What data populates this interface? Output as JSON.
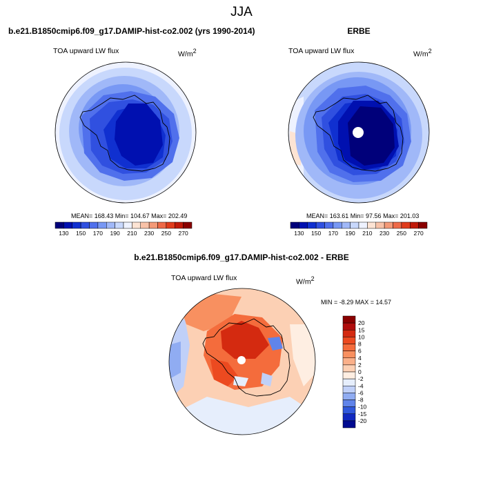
{
  "page": {
    "title": "JJA"
  },
  "panels": [
    {
      "id": "model",
      "header": "b.e21.B1850cmip6.f09_g17.DAMIP-hist-co2.002 (yrs 1990-2014)",
      "variable": "TOA upward LW flux",
      "units": "W/m",
      "units_exp": "2",
      "stats": "MEAN= 168.43  Min= 104.67  Max= 202.49"
    },
    {
      "id": "obs",
      "header": "ERBE",
      "variable": "TOA upward LW flux",
      "units": "W/m",
      "units_exp": "2",
      "stats": "MEAN= 163.61  Min= 97.56  Max= 201.03"
    },
    {
      "id": "diff",
      "header": "b.e21.B1850cmip6.f09_g17.DAMIP-hist-co2.002 - ERBE",
      "variable": "TOA upward LW flux",
      "units": "W/m",
      "units_exp": "2",
      "stats": "MIN =  -8.29 MAX =  14.57"
    }
  ],
  "chart_data": [
    {
      "type": "heatmap",
      "projection": "south-polar-stereographic",
      "title": "b.e21.B1850cmip6.f09_g17.DAMIP-hist-co2.002 (yrs 1990-2014)",
      "variable": "TOA upward LW flux",
      "units": "W/m^2",
      "stats": {
        "mean": 168.43,
        "min": 104.67,
        "max": 202.49
      },
      "colorbar": {
        "orientation": "horizontal",
        "tick_labels": [
          "130",
          "150",
          "170",
          "190",
          "210",
          "230",
          "250",
          "270"
        ],
        "colors": [
          "#00007a",
          "#0010b0",
          "#1030d0",
          "#3050e0",
          "#5070ec",
          "#7898f4",
          "#a0b8f8",
          "#c8d8fc",
          "#eef2ff",
          "#fde4d4",
          "#f8c2a8",
          "#f49a78",
          "#ee6a48",
          "#e03c1c",
          "#c01a0a",
          "#8a0000"
        ]
      }
    },
    {
      "type": "heatmap",
      "projection": "south-polar-stereographic",
      "title": "ERBE",
      "variable": "TOA upward LW flux",
      "units": "W/m^2",
      "stats": {
        "mean": 163.61,
        "min": 97.56,
        "max": 201.03
      },
      "colorbar": {
        "orientation": "horizontal",
        "tick_labels": [
          "130",
          "150",
          "170",
          "190",
          "210",
          "230",
          "250",
          "270"
        ],
        "colors": [
          "#00007a",
          "#0010b0",
          "#1030d0",
          "#3050e0",
          "#5070ec",
          "#7898f4",
          "#a0b8f8",
          "#c8d8fc",
          "#eef2ff",
          "#fde4d4",
          "#f8c2a8",
          "#f49a78",
          "#ee6a48",
          "#e03c1c",
          "#c01a0a",
          "#8a0000"
        ]
      }
    },
    {
      "type": "heatmap",
      "projection": "south-polar-stereographic",
      "title": "b.e21.B1850cmip6.f09_g17.DAMIP-hist-co2.002 - ERBE",
      "variable": "TOA upward LW flux",
      "units": "W/m^2",
      "stats": {
        "min": -8.29,
        "max": 14.57
      },
      "colorbar": {
        "orientation": "vertical",
        "tick_labels": [
          "20",
          "15",
          "10",
          "8",
          "6",
          "4",
          "2",
          "0",
          "-2",
          "-4",
          "-6",
          "-8",
          "-10",
          "-15",
          "-20"
        ],
        "colors": [
          "#8a0000",
          "#b00c0c",
          "#d42a10",
          "#ec4a20",
          "#f46c3c",
          "#f89060",
          "#fab08a",
          "#fcd0b4",
          "#feeee2",
          "#e6eefc",
          "#c0d0f8",
          "#90acf2",
          "#6084ea",
          "#3058dc",
          "#1028c0",
          "#000a90"
        ]
      }
    }
  ]
}
